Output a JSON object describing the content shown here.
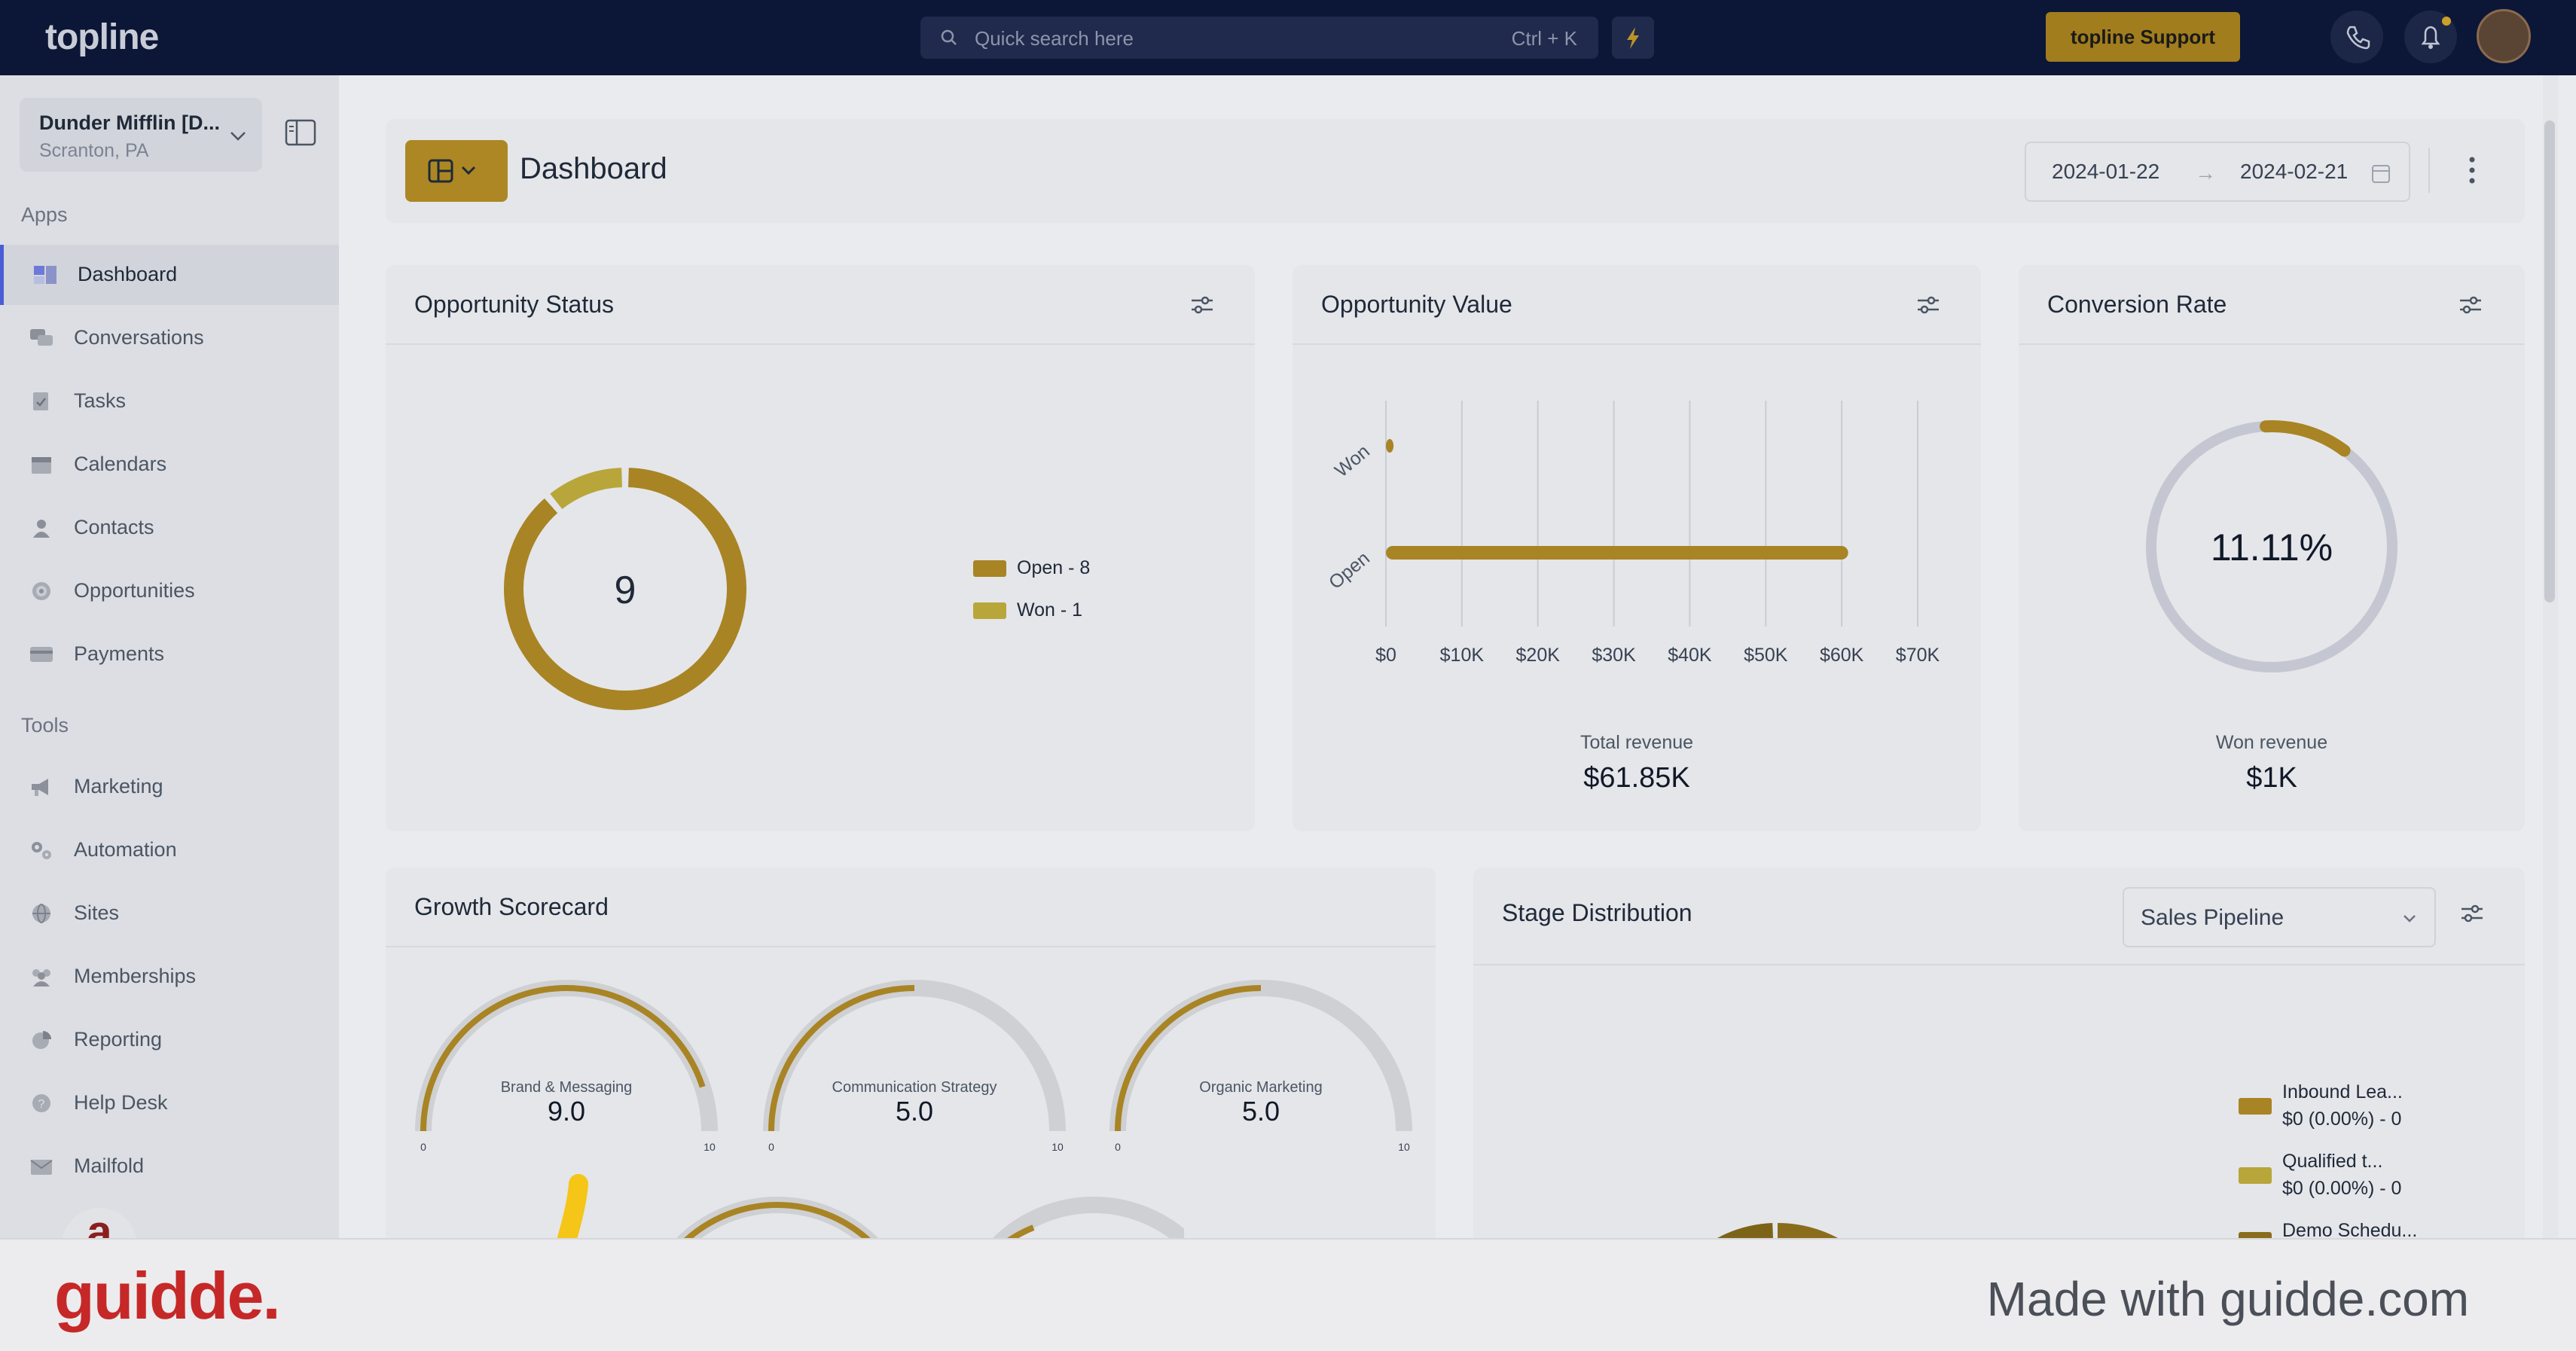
{
  "topbar": {
    "logo": "topline",
    "search_placeholder": "Quick search here",
    "search_shortcut": "Ctrl + K",
    "support_label": "topline Support",
    "icons": [
      "search-icon",
      "bolt-icon",
      "phone-icon",
      "bell-icon",
      "avatar"
    ]
  },
  "sidebar": {
    "company_name": "Dunder Mifflin [D...",
    "company_location": "Scranton, PA",
    "apps_label": "Apps",
    "tools_label": "Tools",
    "apps": [
      {
        "label": "Dashboard",
        "icon": "dashboard-icon",
        "active": true
      },
      {
        "label": "Conversations",
        "icon": "chat-icon"
      },
      {
        "label": "Tasks",
        "icon": "task-icon"
      },
      {
        "label": "Calendars",
        "icon": "calendar-icon"
      },
      {
        "label": "Contacts",
        "icon": "person-icon"
      },
      {
        "label": "Opportunities",
        "icon": "target-icon"
      },
      {
        "label": "Payments",
        "icon": "card-icon"
      }
    ],
    "tools": [
      {
        "label": "Marketing",
        "icon": "megaphone-icon"
      },
      {
        "label": "Automation",
        "icon": "gears-icon"
      },
      {
        "label": "Sites",
        "icon": "globe-icon"
      },
      {
        "label": "Memberships",
        "icon": "users-icon"
      },
      {
        "label": "Reporting",
        "icon": "pie-icon"
      },
      {
        "label": "Help Desk",
        "icon": "help-icon"
      },
      {
        "label": "Mailfold",
        "icon": "mail-icon"
      }
    ]
  },
  "header": {
    "title": "Dashboard",
    "date_from": "2024-01-22",
    "date_to": "2024-02-21",
    "arrow": "→"
  },
  "opportunity_status": {
    "title": "Opportunity Status",
    "total": "9",
    "legend": [
      "Open - 8",
      "Won - 1"
    ]
  },
  "opportunity_value": {
    "title": "Opportunity Value",
    "total_label": "Total revenue",
    "total_value": "$61.85K"
  },
  "conversion_rate": {
    "title": "Conversion Rate",
    "rate": "11.11%",
    "rate_fraction": 0.1111,
    "won_label": "Won revenue",
    "won_value": "$1K"
  },
  "growth_scorecard": {
    "title": "Growth Scorecard",
    "gauges": [
      {
        "label": "Brand & Messaging",
        "value": "9.0",
        "score": 9.0,
        "min": "0",
        "max": "10"
      },
      {
        "label": "Communication Strategy",
        "value": "5.0",
        "score": 5.0,
        "min": "0",
        "max": "10"
      },
      {
        "label": "Organic Marketing",
        "value": "5.0",
        "score": 5.0,
        "min": "0",
        "max": "10"
      }
    ]
  },
  "stage_distribution": {
    "title": "Stage Distribution",
    "pipeline": "Sales Pipeline",
    "legend": [
      {
        "name": "Inbound Lea...",
        "value": "$0 (0.00%) - 0"
      },
      {
        "name": "Qualified t...",
        "value": "$0 (0.00%) - 0"
      },
      {
        "name": "Demo Schedu..."
      }
    ]
  },
  "chart_data": [
    {
      "type": "pie",
      "title": "Opportunity Status",
      "categories": [
        "Open",
        "Won"
      ],
      "values": [
        8,
        1
      ],
      "colors": [
        "#a88424",
        "#b9a63a"
      ]
    },
    {
      "type": "bar",
      "title": "Opportunity Value",
      "orientation": "horizontal",
      "categories": [
        "Won",
        "Open"
      ],
      "values": [
        1000,
        60850
      ],
      "xlim": [
        0,
        70000
      ],
      "tick_labels": [
        "$0",
        "$10K",
        "$20K",
        "$30K",
        "$40K",
        "$50K",
        "$60K",
        "$70K"
      ],
      "grid": true,
      "color": "#a88424"
    }
  ],
  "footer": {
    "brand": "guidde.",
    "tagline": "Made with guidde.com"
  },
  "colors": {
    "accent": "#ac8724",
    "topbar": "#0c1636",
    "active_border": "#4b5dd6"
  }
}
